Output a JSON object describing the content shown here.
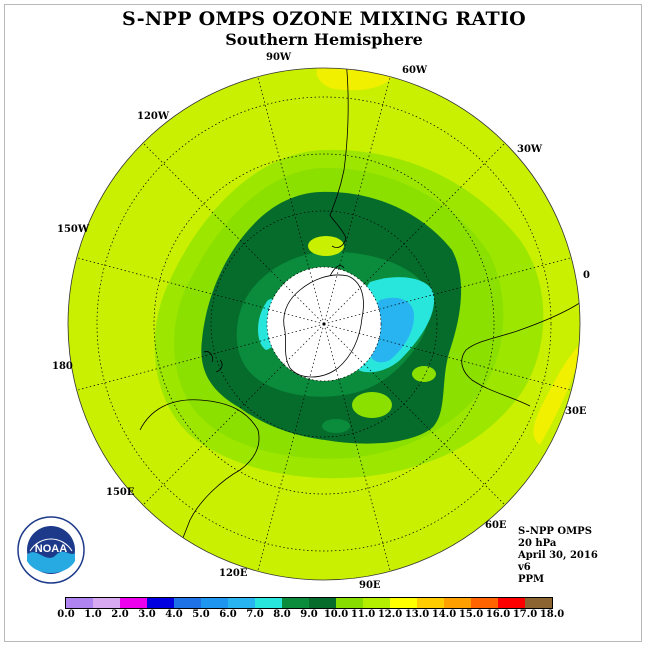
{
  "title": "S-NPP OMPS OZONE MIXING RATIO",
  "subtitle": "Southern Hemisphere",
  "longitude_labels": [
    "90W",
    "60W",
    "30W",
    "0",
    "30E",
    "60E",
    "90E",
    "120E",
    "150E",
    "180",
    "150W",
    "120W"
  ],
  "info": {
    "instrument": "S-NPP OMPS",
    "pressure": "20 hPa",
    "date": "April 30, 2016",
    "version": "v6",
    "units": "PPM"
  },
  "logo": {
    "text": "NOAA",
    "icon": "noaa-logo"
  },
  "colorbar": {
    "ticks": [
      "0.0",
      "1.0",
      "2.0",
      "3.0",
      "4.0",
      "5.0",
      "6.0",
      "7.0",
      "8.0",
      "9.0",
      "10.0",
      "11.0",
      "12.0",
      "13.0",
      "14.0",
      "15.0",
      "16.0",
      "17.0",
      "18.0"
    ],
    "colors": [
      "#b084f0",
      "#d8a8f0",
      "#ee00ee",
      "#0000e0",
      "#1e72e6",
      "#1e96f0",
      "#28b4f0",
      "#28e6dc",
      "#0a8c3c",
      "#056c2c",
      "#88dd00",
      "#b4ee00",
      "#ffff00",
      "#ffcc00",
      "#ffa000",
      "#ff6400",
      "#ff0000",
      "#8c6432"
    ]
  },
  "colors": {
    "c11": "#9ce600",
    "c12": "#c8f000",
    "c13": "#f0f000",
    "c10": "#8ce000",
    "c9": "#056c2c",
    "c8": "#0a8c3c",
    "c7": "#28e6dc",
    "c6": "#28b4f0",
    "c5": "#1e96f0",
    "pole": "#ffffff"
  }
}
